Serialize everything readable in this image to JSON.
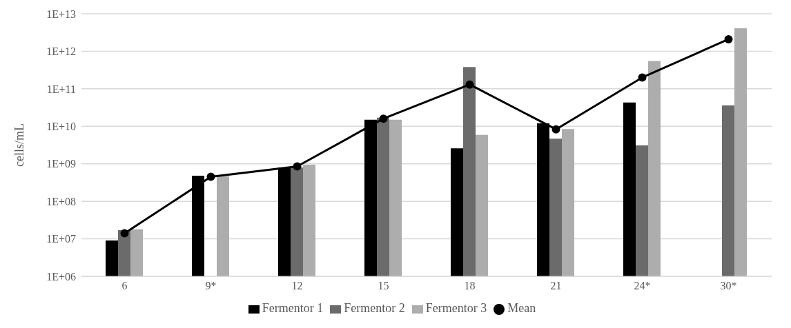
{
  "chart_data": {
    "type": "bar",
    "ylabel": "cells/mL",
    "log": "y",
    "categories": [
      "6",
      "9*",
      "12",
      "15",
      "18",
      "21",
      "24*",
      "30*"
    ],
    "series": [
      {
        "name": "Fermentor 1",
        "color": "#000000",
        "values": [
          9000000.0,
          480000000.0,
          800000000.0,
          15000000000.0,
          2600000000.0,
          12000000000.0,
          43000000000.0,
          null
        ]
      },
      {
        "name": "Fermentor 2",
        "color": "#6b6b6b",
        "values": [
          17000000.0,
          null,
          800000000.0,
          17000000000.0,
          380000000000.0,
          4700000000.0,
          3100000000.0,
          36000000000.0
        ]
      },
      {
        "name": "Fermentor 3",
        "color": "#adadad",
        "values": [
          18000000.0,
          460000000.0,
          950000000.0,
          15000000000.0,
          5900000000.0,
          8500000000.0,
          550000000000.0,
          4100000000000.0
        ]
      },
      {
        "name": "Mean",
        "type": "line",
        "color": "#000000",
        "marker": "circle",
        "values": [
          14000000.0,
          450000000.0,
          850000000.0,
          16000000000.0,
          130000000000.0,
          8300000000.0,
          200000000000.0,
          2100000000000.0
        ]
      }
    ],
    "ylim": [
      1000000.0,
      10000000000000.0
    ],
    "yticks": [
      {
        "value": 1000000.0,
        "label": "1E+06"
      },
      {
        "value": 10000000.0,
        "label": "1E+07"
      },
      {
        "value": 100000000.0,
        "label": "1E+08"
      },
      {
        "value": 1000000000.0,
        "label": "1E+09"
      },
      {
        "value": 10000000000.0,
        "label": "1E+10"
      },
      {
        "value": 100000000000.0,
        "label": "1E+11"
      },
      {
        "value": 1000000000000.0,
        "label": "1E+12"
      },
      {
        "value": 10000000000000.0,
        "label": "1E+13"
      }
    ],
    "grid": "y",
    "legend": "bottom"
  }
}
